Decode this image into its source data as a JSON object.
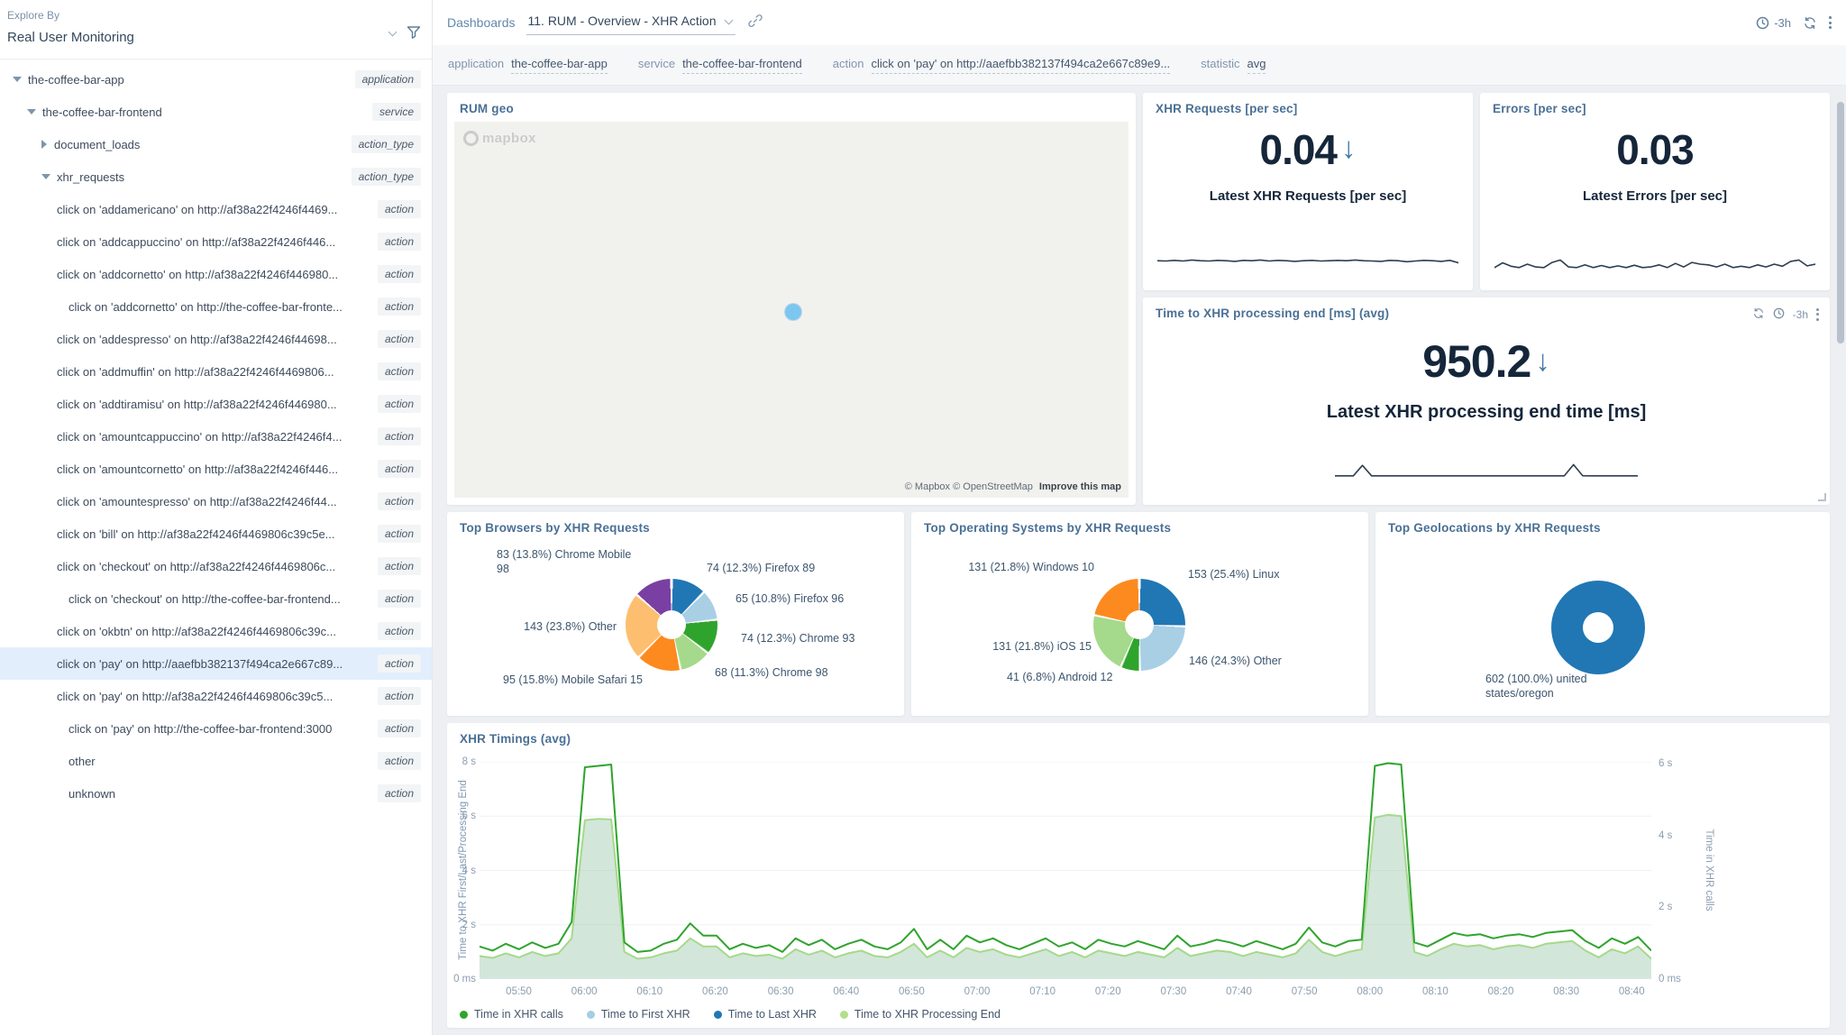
{
  "colors": {
    "accent_blue": "#2077b4",
    "selected_row": "#e2eefb",
    "panel_title": "#4a7095",
    "trend_arrow": "#4679a8",
    "sparkline": "#2d3e50",
    "content_background": "#edeff2"
  },
  "sidebar": {
    "explore_by_label": "Explore By",
    "selector_value": "Real User Monitoring",
    "tree": [
      {
        "label": "the-coffee-bar-app",
        "badge": "application",
        "level": 0,
        "caret": "down",
        "selected": false
      },
      {
        "label": "the-coffee-bar-frontend",
        "badge": "service",
        "level": 1,
        "caret": "down",
        "selected": false
      },
      {
        "label": "document_loads",
        "badge": "action_type",
        "level": 2,
        "caret": "right",
        "selected": false
      },
      {
        "label": "xhr_requests",
        "badge": "action_type",
        "level": 2,
        "caret": "down",
        "selected": false
      },
      {
        "label": "click on 'addamericano' on http://af38a22f4246f4469...",
        "badge": "action",
        "level": 3,
        "caret": "none",
        "selected": false
      },
      {
        "label": "click on 'addcappuccino' on http://af38a22f4246f446...",
        "badge": "action",
        "level": 3,
        "caret": "none",
        "selected": false
      },
      {
        "label": "click on 'addcornetto' on http://af38a22f4246f446980...",
        "badge": "action",
        "level": 3,
        "caret": "none",
        "selected": false
      },
      {
        "label": "click on 'addcornetto' on http://the-coffee-bar-fronte...",
        "badge": "action",
        "level": 4,
        "caret": "none",
        "selected": false
      },
      {
        "label": "click on 'addespresso' on http://af38a22f4246f44698...",
        "badge": "action",
        "level": 3,
        "caret": "none",
        "selected": false
      },
      {
        "label": "click on 'addmuffin' on http://af38a22f4246f4469806...",
        "badge": "action",
        "level": 3,
        "caret": "none",
        "selected": false
      },
      {
        "label": "click on 'addtiramisu' on http://af38a22f4246f446980...",
        "badge": "action",
        "level": 3,
        "caret": "none",
        "selected": false
      },
      {
        "label": "click on 'amountcappuccino' on http://af38a22f4246f4...",
        "badge": "action",
        "level": 3,
        "caret": "none",
        "selected": false
      },
      {
        "label": "click on 'amountcornetto' on http://af38a22f4246f446...",
        "badge": "action",
        "level": 3,
        "caret": "none",
        "selected": false
      },
      {
        "label": "click on 'amountespresso' on http://af38a22f4246f44...",
        "badge": "action",
        "level": 3,
        "caret": "none",
        "selected": false
      },
      {
        "label": "click on 'bill' on http://af38a22f4246f4469806c39c5e...",
        "badge": "action",
        "level": 3,
        "caret": "none",
        "selected": false
      },
      {
        "label": "click on 'checkout' on http://af38a22f4246f4469806c...",
        "badge": "action",
        "level": 3,
        "caret": "none",
        "selected": false
      },
      {
        "label": "click on 'checkout' on http://the-coffee-bar-frontend...",
        "badge": "action",
        "level": 4,
        "caret": "none",
        "selected": false
      },
      {
        "label": "click on 'okbtn' on http://af38a22f4246f4469806c39c...",
        "badge": "action",
        "level": 3,
        "caret": "none",
        "selected": false
      },
      {
        "label": "click on 'pay' on http://aaefbb382137f494ca2e667c89...",
        "badge": "action",
        "level": 3,
        "caret": "none",
        "selected": true
      },
      {
        "label": "click on 'pay' on http://af38a22f4246f4469806c39c5...",
        "badge": "action",
        "level": 3,
        "caret": "none",
        "selected": false
      },
      {
        "label": "click on 'pay' on http://the-coffee-bar-frontend:3000",
        "badge": "action",
        "level": 4,
        "caret": "none",
        "selected": false
      },
      {
        "label": "other",
        "badge": "action",
        "level": 4,
        "caret": "none",
        "selected": false
      },
      {
        "label": "unknown",
        "badge": "action",
        "level": 4,
        "caret": "none",
        "selected": false
      }
    ]
  },
  "topbar": {
    "dashboards_label": "Dashboards",
    "dashboard_name": "11. RUM - Overview - XHR Action",
    "time_range": "-3h"
  },
  "filterbar": [
    {
      "label": "application",
      "value": "the-coffee-bar-app"
    },
    {
      "label": "service",
      "value": "the-coffee-bar-frontend"
    },
    {
      "label": "action",
      "value": "click on 'pay' on http://aaefbb382137f494ca2e667c89e9..."
    },
    {
      "label": "statistic",
      "value": "avg"
    }
  ],
  "panels": {
    "rum_geo": {
      "title": "RUM geo",
      "watermark": "mapbox",
      "attribution": "© Mapbox © OpenStreetMap",
      "improve_link": "Improve this map"
    },
    "xhr_requests": {
      "title": "XHR Requests [per sec]",
      "value": "0.04",
      "trend": "down",
      "caption": "Latest XHR Requests [per sec]",
      "sparkline": [
        0.04,
        0.039,
        0.041,
        0.039,
        0.042,
        0.04,
        0.039,
        0.041,
        0.04,
        0.038,
        0.041,
        0.04,
        0.042,
        0.039,
        0.041,
        0.04,
        0.038,
        0.04,
        0.041,
        0.039,
        0.04,
        0.041,
        0.04,
        0.042,
        0.04,
        0.039,
        0.038,
        0.041,
        0.04,
        0.037,
        0.039,
        0.041,
        0.04,
        0.038,
        0.041,
        0.034
      ]
    },
    "errors": {
      "title": "Errors [per sec]",
      "value": "0.03",
      "caption": "Latest Errors [per sec]",
      "sparkline": [
        0.02,
        0.034,
        0.024,
        0.02,
        0.03,
        0.022,
        0.02,
        0.035,
        0.042,
        0.022,
        0.02,
        0.028,
        0.02,
        0.026,
        0.02,
        0.025,
        0.02,
        0.027,
        0.02,
        0.022,
        0.028,
        0.02,
        0.032,
        0.022,
        0.035,
        0.03,
        0.028,
        0.022,
        0.03,
        0.02,
        0.024,
        0.02,
        0.028,
        0.022,
        0.03,
        0.024,
        0.038,
        0.042,
        0.025,
        0.03
      ]
    },
    "time_to_xhr": {
      "title": "Time to XHR processing end [ms] (avg)",
      "value": "950.2",
      "trend": "down",
      "caption": "Latest XHR processing end time [ms]",
      "time_range": "-3h",
      "sparkline": [
        950,
        948,
        951,
        1980,
        950,
        949,
        950,
        951,
        949,
        950,
        950,
        948,
        951,
        950,
        949,
        950,
        948,
        950,
        950,
        949,
        951,
        950,
        948,
        950,
        949,
        951,
        2050,
        960,
        950,
        949,
        950,
        951,
        950,
        949
      ]
    }
  },
  "chart_data": [
    {
      "id": "browsers",
      "type": "pie",
      "title": "Top Browsers by XHR Requests",
      "labels": [
        "Firefox 89",
        "Firefox 96",
        "Chrome 93",
        "Chrome 98",
        "Mobile Safari 15",
        "Other",
        "Chrome Mobile 98"
      ],
      "values": [
        74,
        65,
        74,
        68,
        95,
        143,
        83
      ],
      "percentages": [
        12.3,
        10.8,
        12.3,
        11.3,
        15.8,
        23.8,
        13.8
      ],
      "display_labels": [
        "74 (12.3%) Firefox 89",
        "65 (10.8%) Firefox 96",
        "74 (12.3%) Chrome 93",
        "68 (11.3%) Chrome 98",
        "95 (15.8%) Mobile Safari 15",
        "143 (23.8%) Other",
        "83 (13.8%) Chrome Mobile 98"
      ],
      "colors": [
        "#2077b4",
        "#a9cfe5",
        "#2fa42d",
        "#a5d98b",
        "#fd8a1e",
        "#fdbf6f",
        "#7a3fa3"
      ]
    },
    {
      "id": "os",
      "type": "pie",
      "title": "Top Operating Systems by XHR Requests",
      "labels": [
        "Linux",
        "Other",
        "Android 12",
        "iOS 15",
        "Windows 10"
      ],
      "values": [
        153,
        146,
        41,
        131,
        131
      ],
      "percentages": [
        25.4,
        24.3,
        6.8,
        21.8,
        21.8
      ],
      "display_labels": [
        "153 (25.4%) Linux",
        "146 (24.3%) Other",
        "41 (6.8%) Android 12",
        "131 (21.8%) iOS 15",
        "131 (21.8%) Windows 10"
      ],
      "colors": [
        "#2077b4",
        "#a9cfe5",
        "#2fa42d",
        "#a5d98b",
        "#fd8a1e"
      ]
    },
    {
      "id": "geo",
      "type": "pie",
      "title": "Top Geolocations by XHR Requests",
      "labels": [
        "united states/oregon"
      ],
      "values": [
        602
      ],
      "percentages": [
        100.0
      ],
      "display_labels": [
        "602 (100.0%) united states/oregon"
      ],
      "colors": [
        "#2077b4"
      ]
    },
    {
      "id": "timings",
      "type": "area",
      "title": "XHR Timings (avg)",
      "ylabel_left": "Time to XHR First/Last/Processing End",
      "ylabel_right": "Time in XHR calls",
      "yticks_left": [
        {
          "v": 0,
          "label": "0 ms"
        },
        {
          "v": 2,
          "label": "2 s"
        },
        {
          "v": 4,
          "label": "4 s"
        },
        {
          "v": 6,
          "label": "6 s"
        },
        {
          "v": 8,
          "label": "8 s"
        }
      ],
      "yticks_right": [
        {
          "v": 0,
          "label": "0 ms"
        },
        {
          "v": 2,
          "label": "2 s"
        },
        {
          "v": 4,
          "label": "4 s"
        },
        {
          "v": 6,
          "label": "6 s"
        }
      ],
      "ylim_left": [
        0,
        8
      ],
      "ylim_right": [
        0,
        6.05
      ],
      "x_start": "05:44",
      "x_end": "08:43",
      "x_tick_labels": [
        "05:50",
        "06:00",
        "06:10",
        "06:20",
        "06:30",
        "06:40",
        "06:50",
        "07:00",
        "07:10",
        "07:20",
        "07:30",
        "07:40",
        "07:50",
        "08:00",
        "08:10",
        "08:20",
        "08:30",
        "08:40"
      ],
      "grid": true,
      "legend_position": "bottom",
      "legend": [
        {
          "label": "Time in XHR calls",
          "color": "#2fa42d"
        },
        {
          "label": "Time to First XHR",
          "color": "#a6cee3"
        },
        {
          "label": "Time to Last XHR",
          "color": "#1f78b4"
        },
        {
          "label": "Time to XHR Processing End",
          "color": "#b2df8a"
        }
      ],
      "series": [
        {
          "name": "Time in XHR calls",
          "color": "#2fa42d",
          "values": [
            1.2,
            1.05,
            1.3,
            1.1,
            1.35,
            1.15,
            1.3,
            2.1,
            7.8,
            7.85,
            7.9,
            1.35,
            1.0,
            1.05,
            1.3,
            1.45,
            2.05,
            1.6,
            1.6,
            1.1,
            1.3,
            1.15,
            1.25,
            1.0,
            1.5,
            1.25,
            1.45,
            1.1,
            1.3,
            1.45,
            1.2,
            1.1,
            1.35,
            1.85,
            1.1,
            1.45,
            1.1,
            1.6,
            1.35,
            1.5,
            1.25,
            1.1,
            1.3,
            1.5,
            1.2,
            1.35,
            1.1,
            1.45,
            1.3,
            1.2,
            1.4,
            1.25,
            1.1,
            1.6,
            1.2,
            1.3,
            1.45,
            1.35,
            1.2,
            1.4,
            1.25,
            1.1,
            1.3,
            1.9,
            1.35,
            1.2,
            1.4,
            1.45,
            7.85,
            7.95,
            7.9,
            1.35,
            1.2,
            1.45,
            1.7,
            1.6,
            1.65,
            1.5,
            1.6,
            1.65,
            1.55,
            1.7,
            1.75,
            1.8,
            1.4,
            1.15,
            1.5,
            1.3,
            1.55,
            1.05
          ]
        },
        {
          "name": "Time to XHR Processing End",
          "color": "#a5d98b",
          "fill": "#9ec7ae",
          "values": [
            0.85,
            0.78,
            0.95,
            0.8,
            1.0,
            0.85,
            0.95,
            1.5,
            5.85,
            5.9,
            5.88,
            1.0,
            0.75,
            0.8,
            0.95,
            1.05,
            1.5,
            1.2,
            1.2,
            0.8,
            0.95,
            0.85,
            0.9,
            0.75,
            1.1,
            0.9,
            1.05,
            0.8,
            0.95,
            1.05,
            0.85,
            0.8,
            1.0,
            1.3,
            0.8,
            1.05,
            0.8,
            1.15,
            1.0,
            1.1,
            0.9,
            0.8,
            0.95,
            1.1,
            0.85,
            1.0,
            0.8,
            1.05,
            0.95,
            0.85,
            1.0,
            0.9,
            0.8,
            1.15,
            0.85,
            0.95,
            1.05,
            1.0,
            0.85,
            1.0,
            0.9,
            0.8,
            0.95,
            1.45,
            1.0,
            0.85,
            1.0,
            1.1,
            5.95,
            6.05,
            6.0,
            1.0,
            0.85,
            1.1,
            1.3,
            1.2,
            1.25,
            1.1,
            1.2,
            1.25,
            1.15,
            1.3,
            1.35,
            1.4,
            1.05,
            0.8,
            1.1,
            0.95,
            1.2,
            0.75
          ]
        }
      ]
    }
  ]
}
